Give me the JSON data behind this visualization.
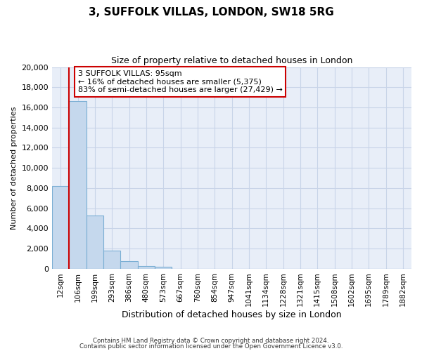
{
  "title": "3, SUFFOLK VILLAS, LONDON, SW18 5RG",
  "subtitle": "Size of property relative to detached houses in London",
  "xlabel": "Distribution of detached houses by size in London",
  "ylabel": "Number of detached properties",
  "bar_labels": [
    "12sqm",
    "106sqm",
    "199sqm",
    "293sqm",
    "386sqm",
    "480sqm",
    "573sqm",
    "667sqm",
    "760sqm",
    "854sqm",
    "947sqm",
    "1041sqm",
    "1134sqm",
    "1228sqm",
    "1321sqm",
    "1415sqm",
    "1508sqm",
    "1602sqm",
    "1695sqm",
    "1789sqm",
    "1882sqm"
  ],
  "bar_values": [
    8200,
    16600,
    5300,
    1800,
    750,
    250,
    200,
    0,
    0,
    0,
    0,
    0,
    0,
    0,
    0,
    0,
    0,
    0,
    0,
    0,
    0
  ],
  "bar_color": "#c5d8ed",
  "bar_edge_color": "#7bafd4",
  "annotation_title": "3 SUFFOLK VILLAS: 95sqm",
  "annotation_line1": "← 16% of detached houses are smaller (5,375)",
  "annotation_line2": "83% of semi-detached houses are larger (27,429) →",
  "annotation_box_color": "#ffffff",
  "annotation_box_edge_color": "#cc0000",
  "vline_color": "#cc0000",
  "ylim": [
    0,
    20000
  ],
  "yticks": [
    0,
    2000,
    4000,
    6000,
    8000,
    10000,
    12000,
    14000,
    16000,
    18000,
    20000
  ],
  "grid_color": "#c8d4e8",
  "bg_color": "#e8eef8",
  "footer_line1": "Contains HM Land Registry data © Crown copyright and database right 2024.",
  "footer_line2": "Contains public sector information licensed under the Open Government Licence v3.0."
}
